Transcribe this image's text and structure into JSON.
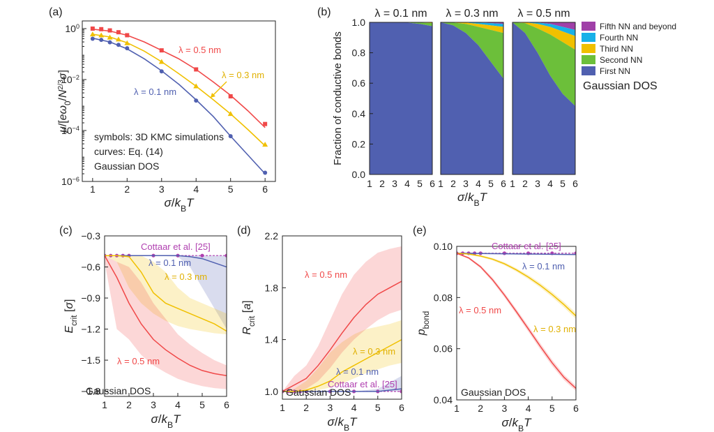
{
  "colors": {
    "blue": "#5060b0",
    "gold": "#f0c000",
    "red": "#f04848",
    "purple": "#b040b0",
    "green": "#6cbf3a",
    "cyan": "#18b0e8",
    "violet": "#a040a8"
  },
  "panels": {
    "a": {
      "label": "(a)",
      "note_symbols": "symbols: 3D KMC simulations",
      "note_curves": "curves: Eq. (14)",
      "note_dos": "Gaussian DOS"
    },
    "b": {
      "label": "(b)",
      "dos": "Gaussian DOS"
    },
    "c": {
      "label": "(c)",
      "dos": "Gaussian DOS"
    },
    "d": {
      "label": "(d)",
      "dos": "Gaussian DOS"
    },
    "e": {
      "label": "(e)",
      "dos": "Gaussian DOS"
    }
  },
  "chart_data": [
    {
      "id": "a",
      "type": "scatter",
      "xlabel": "σ/k_BT",
      "ylabel": "μ/[eω₀/N^{2/3}σ]",
      "xlim": [
        0.7,
        6.3
      ],
      "ylim": [
        1e-06,
        2
      ],
      "yscale": "log",
      "xticks": [
        "1",
        "2",
        "3",
        "4",
        "5",
        "6"
      ],
      "yticks": [
        "10^0",
        "10^-2",
        "10^-4",
        "10^-6"
      ],
      "series": [
        {
          "name": "λ = 0.5 nm",
          "color": "#f04848",
          "marker": "square",
          "points": [
            [
              1,
              1.0
            ],
            [
              1.25,
              0.95
            ],
            [
              1.5,
              0.85
            ],
            [
              1.75,
              0.72
            ],
            [
              2,
              0.55
            ],
            [
              3,
              0.14
            ],
            [
              4,
              0.025
            ],
            [
              5,
              0.0022
            ],
            [
              6,
              0.00018
            ]
          ],
          "curve": [
            [
              1,
              0.95
            ],
            [
              1.5,
              0.8
            ],
            [
              2,
              0.55
            ],
            [
              2.5,
              0.3
            ],
            [
              3,
              0.14
            ],
            [
              3.5,
              0.065
            ],
            [
              4,
              0.025
            ],
            [
              4.5,
              0.008
            ],
            [
              5,
              0.0024
            ],
            [
              5.5,
              0.0006
            ],
            [
              6,
              0.00013
            ]
          ]
        },
        {
          "name": "λ = 0.3 nm",
          "color": "#f0c000",
          "marker": "triangle",
          "points": [
            [
              1,
              0.6
            ],
            [
              1.25,
              0.55
            ],
            [
              1.5,
              0.45
            ],
            [
              1.75,
              0.38
            ],
            [
              2,
              0.27
            ],
            [
              3,
              0.05
            ],
            [
              4,
              0.0055
            ],
            [
              5,
              0.00045
            ],
            [
              6,
              2.8e-05
            ]
          ],
          "curve": [
            [
              1,
              0.6
            ],
            [
              1.5,
              0.47
            ],
            [
              2,
              0.28
            ],
            [
              2.5,
              0.13
            ],
            [
              3,
              0.05
            ],
            [
              3.5,
              0.017
            ],
            [
              4,
              0.0055
            ],
            [
              4.5,
              0.0016
            ],
            [
              5,
              0.00045
            ],
            [
              5.5,
              0.00011
            ],
            [
              6,
              2.5e-05
            ]
          ]
        },
        {
          "name": "λ = 0.1 nm",
          "color": "#5060b0",
          "marker": "circle",
          "points": [
            [
              1,
              0.4
            ],
            [
              1.25,
              0.36
            ],
            [
              1.5,
              0.29
            ],
            [
              1.75,
              0.23
            ],
            [
              2,
              0.17
            ],
            [
              3,
              0.021
            ],
            [
              4,
              0.0015
            ],
            [
              5,
              6e-05
            ],
            [
              6,
              2.2e-06
            ]
          ],
          "curve": [
            [
              1,
              0.42
            ],
            [
              1.5,
              0.3
            ],
            [
              2,
              0.16
            ],
            [
              2.5,
              0.065
            ],
            [
              3,
              0.022
            ],
            [
              3.5,
              0.0065
            ],
            [
              4,
              0.0016
            ],
            [
              4.5,
              0.00035
            ],
            [
              5,
              6e-05
            ],
            [
              5.5,
              1.1e-05
            ],
            [
              6,
              2e-06
            ]
          ]
        }
      ]
    },
    {
      "id": "b",
      "type": "area",
      "ylabel": "Fraction of conductive bonds",
      "xlabel": "σ/k_BT",
      "ylim": [
        0,
        1
      ],
      "xlim": [
        1,
        6
      ],
      "yticks": [
        "0.0",
        "0.2",
        "0.4",
        "0.6",
        "0.8",
        "1.0"
      ],
      "xticks": [
        "1",
        "2",
        "3",
        "4",
        "5",
        "6"
      ],
      "legend": [
        "Fifth NN and beyond",
        "Fourth NN",
        "Third NN",
        "Second NN",
        "First NN"
      ],
      "legend_colors": [
        "#a040a8",
        "#18b0e8",
        "#f0c000",
        "#6cbf3a",
        "#5060b0"
      ],
      "subplots": [
        {
          "title": "λ = 0.1 nm",
          "x": [
            1,
            2,
            3,
            4,
            5,
            6
          ],
          "first": [
            1,
            1,
            1,
            0.998,
            0.99,
            0.975
          ],
          "second": [
            1,
            1,
            1,
            1,
            0.998,
            0.995
          ],
          "third": [
            1,
            1,
            1,
            1,
            1,
            0.998
          ],
          "fourth": [
            1,
            1,
            1,
            1,
            1,
            1
          ]
        },
        {
          "title": "λ = 0.3 nm",
          "x": [
            1,
            2,
            3,
            4,
            5,
            6
          ],
          "first": [
            1,
            0.98,
            0.93,
            0.85,
            0.74,
            0.63
          ],
          "second": [
            1,
            0.998,
            0.99,
            0.97,
            0.95,
            0.93
          ],
          "third": [
            1,
            1,
            0.998,
            0.99,
            0.98,
            0.97
          ],
          "fourth": [
            1,
            1,
            1,
            0.998,
            0.995,
            0.99
          ]
        },
        {
          "title": "λ = 0.5 nm",
          "x": [
            1,
            2,
            3,
            4,
            5,
            6
          ],
          "first": [
            1,
            0.93,
            0.8,
            0.65,
            0.53,
            0.45
          ],
          "second": [
            1,
            0.995,
            0.96,
            0.92,
            0.87,
            0.82
          ],
          "third": [
            1,
            1,
            0.99,
            0.97,
            0.94,
            0.91
          ],
          "fourth": [
            1,
            1,
            0.998,
            0.99,
            0.97,
            0.95
          ]
        }
      ]
    },
    {
      "id": "c",
      "type": "line",
      "xlabel": "σ/k_BT",
      "ylabel": "E_crit [σ]",
      "xlim": [
        1,
        6
      ],
      "ylim": [
        -1.85,
        -0.3
      ],
      "xticks": [
        "1",
        "2",
        "3",
        "4",
        "5",
        "6"
      ],
      "yticks": [
        "-0.3",
        "-0.6",
        "-0.9",
        "-1.2",
        "-1.5",
        "-1.8"
      ],
      "series": [
        {
          "name": "Cottaar et al. [25]",
          "color": "#b040b0",
          "x": [
            1,
            1.25,
            1.5,
            1.75,
            2,
            3,
            4,
            5,
            6
          ],
          "y": [
            -0.49,
            -0.49,
            -0.49,
            -0.49,
            -0.49,
            -0.49,
            -0.49,
            -0.49,
            -0.49
          ]
        },
        {
          "name": "λ = 0.1 nm",
          "color": "#5060b0",
          "x": [
            1,
            2,
            3,
            4,
            4.5,
            5,
            5.5,
            6
          ],
          "y": [
            -0.49,
            -0.49,
            -0.49,
            -0.49,
            -0.5,
            -0.52,
            -0.56,
            -0.6
          ],
          "band_lo": [
            -0.49,
            -0.49,
            -0.49,
            -0.5,
            -0.6,
            -0.8,
            -1.0,
            -1.2
          ],
          "band_hi": [
            -0.49,
            -0.49,
            -0.49,
            -0.49,
            -0.49,
            -0.49,
            -0.49,
            -0.49
          ]
        },
        {
          "name": "λ = 0.3 nm",
          "color": "#f0c000",
          "x": [
            1,
            1.5,
            2,
            2.5,
            3,
            3.5,
            4,
            4.5,
            5,
            5.5,
            6
          ],
          "y": [
            -0.49,
            -0.49,
            -0.5,
            -0.65,
            -0.85,
            -0.95,
            -1.0,
            -1.05,
            -1.1,
            -1.15,
            -1.22
          ],
          "band_lo": [
            -0.49,
            -0.55,
            -0.8,
            -0.95,
            -1.05,
            -1.12,
            -1.17,
            -1.2,
            -1.22,
            -1.24,
            -1.25
          ],
          "band_hi": [
            -0.49,
            -0.49,
            -0.49,
            -0.49,
            -0.55,
            -0.65,
            -0.8,
            -0.9,
            -0.95,
            -1.0,
            -1.05
          ]
        },
        {
          "name": "λ = 0.5 nm",
          "color": "#f04848",
          "x": [
            1,
            1.5,
            2,
            2.5,
            3,
            3.5,
            4,
            4.5,
            5,
            5.5,
            6
          ],
          "y": [
            -0.49,
            -0.7,
            -0.95,
            -1.15,
            -1.3,
            -1.4,
            -1.48,
            -1.55,
            -1.6,
            -1.63,
            -1.65
          ],
          "band_lo": [
            -0.55,
            -1.2,
            -1.3,
            -1.45,
            -1.55,
            -1.62,
            -1.68,
            -1.72,
            -1.75,
            -1.77,
            -1.78
          ],
          "band_hi": [
            -0.49,
            -0.55,
            -0.6,
            -0.75,
            -0.95,
            -1.1,
            -1.25,
            -1.35,
            -1.43,
            -1.5,
            -1.55
          ]
        }
      ]
    },
    {
      "id": "d",
      "type": "line",
      "xlabel": "σ/k_BT",
      "ylabel": "R_crit [a]",
      "xlim": [
        1,
        6
      ],
      "ylim": [
        0.94,
        2.2
      ],
      "xticks": [
        "1",
        "2",
        "3",
        "4",
        "5",
        "6"
      ],
      "yticks": [
        "1.0",
        "1.4",
        "1.8",
        "2.2"
      ],
      "series": [
        {
          "name": "Cottaar et al. [25]",
          "color": "#b040b0",
          "x": [
            1,
            1.25,
            1.5,
            1.75,
            2,
            3,
            4,
            5,
            6
          ],
          "y": [
            1.0,
            1.0,
            1.0,
            1.0,
            1.0,
            1.0,
            1.0,
            1.0,
            1.0
          ]
        },
        {
          "name": "λ = 0.1 nm",
          "color": "#5060b0",
          "x": [
            1,
            2,
            3,
            4,
            5,
            6
          ],
          "y": [
            1.0,
            1.0,
            1.0,
            1.0,
            1.0,
            1.02
          ],
          "band_lo": [
            1.0,
            1.0,
            1.0,
            1.0,
            1.0,
            1.0
          ],
          "band_hi": [
            1.0,
            1.0,
            1.0,
            1.0,
            1.02,
            1.12
          ]
        },
        {
          "name": "λ = 0.3 nm",
          "color": "#f0c000",
          "x": [
            1,
            1.5,
            2,
            2.5,
            3,
            3.5,
            4,
            4.5,
            5,
            5.5,
            6
          ],
          "y": [
            1.0,
            1.0,
            1.01,
            1.04,
            1.08,
            1.15,
            1.2,
            1.25,
            1.3,
            1.35,
            1.4
          ],
          "band_lo": [
            1.0,
            1.0,
            1.0,
            1.01,
            1.03,
            1.06,
            1.1,
            1.14,
            1.17,
            1.2,
            1.22
          ],
          "band_hi": [
            1.0,
            1.02,
            1.08,
            1.18,
            1.3,
            1.38,
            1.44,
            1.48,
            1.5,
            1.52,
            1.55
          ]
        },
        {
          "name": "λ = 0.5 nm",
          "color": "#f04848",
          "x": [
            1,
            1.5,
            2,
            2.5,
            3,
            3.5,
            4,
            4.5,
            5,
            5.5,
            6
          ],
          "y": [
            1.0,
            1.05,
            1.1,
            1.2,
            1.32,
            1.45,
            1.57,
            1.67,
            1.75,
            1.8,
            1.85
          ],
          "band_lo": [
            1.0,
            1.0,
            1.02,
            1.08,
            1.18,
            1.3,
            1.4,
            1.48,
            1.55,
            1.6,
            1.63
          ],
          "band_hi": [
            1.0,
            1.12,
            1.2,
            1.35,
            1.55,
            1.75,
            1.9,
            2.0,
            2.07,
            2.1,
            2.12
          ]
        }
      ]
    },
    {
      "id": "e",
      "type": "line",
      "xlabel": "σ/k_BT",
      "ylabel": "p_bond",
      "xlim": [
        1,
        6
      ],
      "ylim": [
        0.04,
        0.1
      ],
      "xticks": [
        "1",
        "2",
        "3",
        "4",
        "5",
        "6"
      ],
      "yticks": [
        "0.10",
        "0.08",
        "0.06",
        "0.04"
      ],
      "series": [
        {
          "name": "Cottaar et al. [25]",
          "color": "#b040b0",
          "x": [
            1,
            1.25,
            1.5,
            1.75,
            2,
            3,
            4,
            5,
            6
          ],
          "y": [
            0.0973,
            0.0973,
            0.0973,
            0.0973,
            0.0973,
            0.0973,
            0.0973,
            0.0973,
            0.0973
          ]
        },
        {
          "name": "λ = 0.1 nm",
          "color": "#5060b0",
          "x": [
            1,
            2,
            3,
            4,
            5,
            6
          ],
          "y": [
            0.0973,
            0.0972,
            0.0971,
            0.097,
            0.0969,
            0.0968
          ],
          "band_lo": [
            0.0971,
            0.097,
            0.0969,
            0.0968,
            0.0967,
            0.0966
          ],
          "band_hi": [
            0.0975,
            0.0974,
            0.0973,
            0.0972,
            0.0971,
            0.097
          ]
        },
        {
          "name": "λ = 0.3 nm",
          "color": "#f0c000",
          "x": [
            1,
            1.5,
            2,
            2.5,
            3,
            3.5,
            4,
            4.5,
            5,
            5.5,
            6
          ],
          "y": [
            0.0973,
            0.097,
            0.0962,
            0.095,
            0.0932,
            0.0908,
            0.088,
            0.0848,
            0.0812,
            0.0772,
            0.0728
          ],
          "band_lo": [
            0.0971,
            0.0967,
            0.0958,
            0.0945,
            0.0926,
            0.0901,
            0.0872,
            0.0839,
            0.0802,
            0.0761,
            0.0716
          ],
          "band_hi": [
            0.0975,
            0.0973,
            0.0966,
            0.0955,
            0.0938,
            0.0915,
            0.0888,
            0.0857,
            0.0822,
            0.0783,
            0.074
          ]
        },
        {
          "name": "λ = 0.5 nm",
          "color": "#f04848",
          "x": [
            1,
            1.5,
            2,
            2.5,
            3,
            3.5,
            4,
            4.5,
            5,
            5.5,
            6
          ],
          "y": [
            0.0973,
            0.0955,
            0.092,
            0.087,
            0.081,
            0.0745,
            0.0678,
            0.061,
            0.0545,
            0.0488,
            0.0445
          ],
          "band_lo": [
            0.0971,
            0.0951,
            0.0914,
            0.0862,
            0.0801,
            0.0735,
            0.0667,
            0.0598,
            0.0533,
            0.0477,
            0.0435
          ],
          "band_hi": [
            0.0975,
            0.0959,
            0.0926,
            0.0878,
            0.0819,
            0.0755,
            0.0689,
            0.0622,
            0.0557,
            0.0499,
            0.0455
          ]
        }
      ]
    }
  ],
  "labels": {
    "a_red": "λ = 0.5 nm",
    "a_gold": "λ = 0.3 nm",
    "a_blue": "λ = 0.1 nm",
    "c_cottaar": "Cottaar et al. [25]",
    "c_blue": "λ = 0.1 nm",
    "c_gold": "λ = 0.3 nm",
    "c_red": "λ = 0.5 nm",
    "d_red": "λ = 0.5 nm",
    "d_gold": "λ = 0.3 nm",
    "d_blue": "λ = 0.1 nm",
    "d_cottaar": "Cottaar et al. [25]",
    "e_cottaar": "Cottaar et al. [25]",
    "e_blue": "λ = 0.1 nm",
    "e_red": "λ = 0.5 nm",
    "e_gold": "λ = 0.3 nm"
  }
}
